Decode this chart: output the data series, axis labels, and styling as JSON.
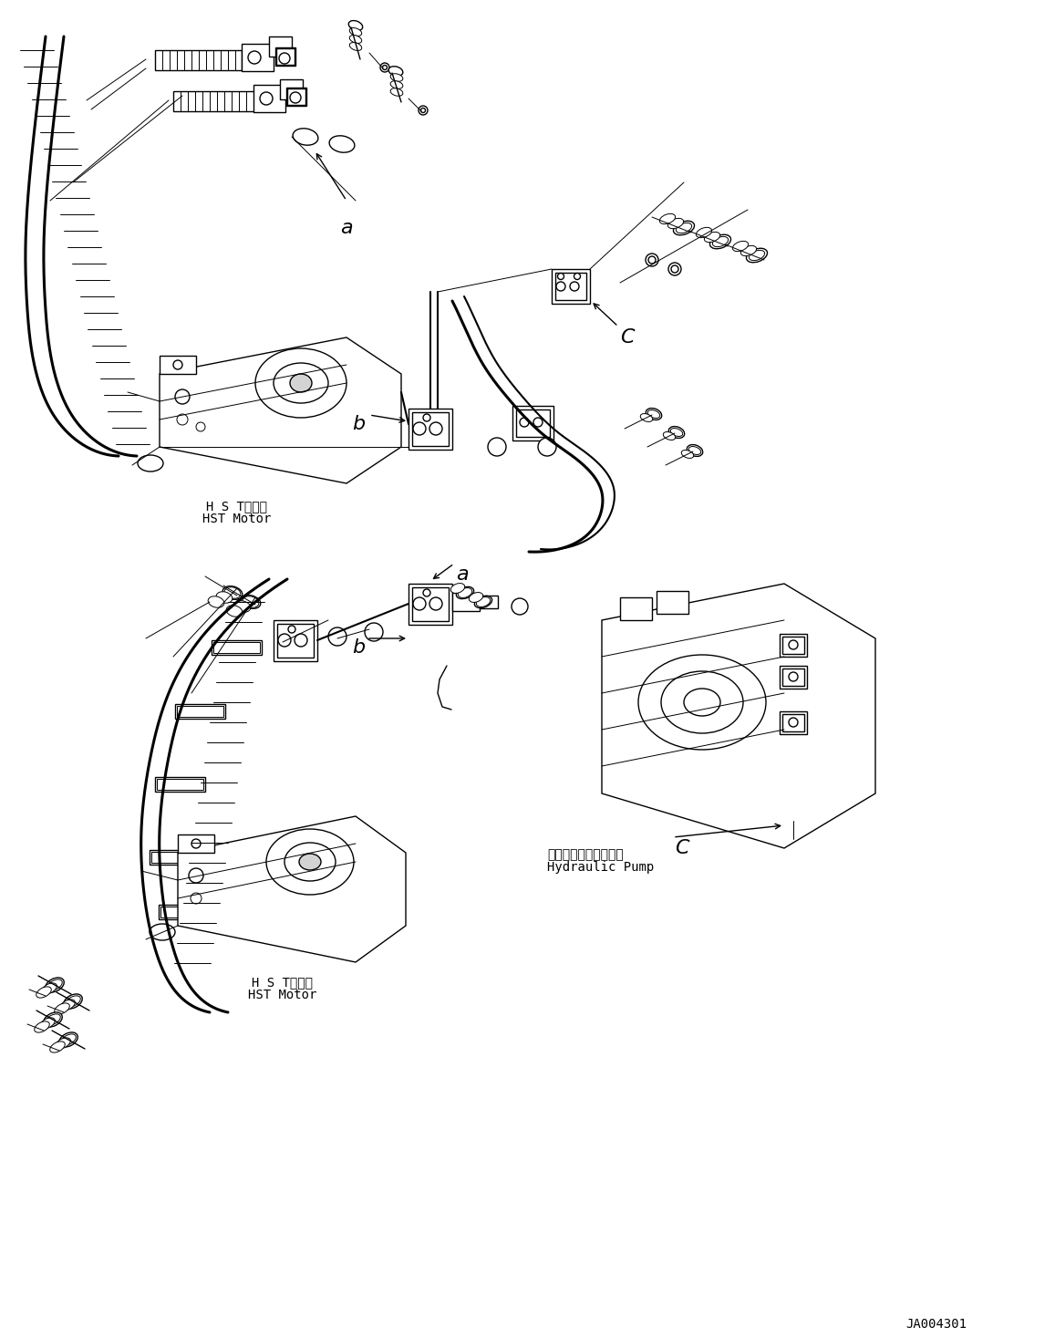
{
  "bg_color": "#ffffff",
  "line_color": "#000000",
  "fig_width": 11.57,
  "fig_height": 14.66,
  "dpi": 100,
  "diagram_id": "JA004301",
  "labels": {
    "hst_motor_jp_top": "H S Tモータ",
    "hst_motor_en_top": "HST Motor",
    "hst_motor_jp_bot": "H S Tモータ",
    "hst_motor_en_bot": "HST Motor",
    "hydraulic_pump_jp": "ハイドロリックポンプ",
    "hydraulic_pump_en": "Hydraulic Pump",
    "label_a_top": "a",
    "label_b_top": "b",
    "label_c_top": "C",
    "label_a_bot": "a",
    "label_b_bot": "b",
    "label_c_bot": "C"
  }
}
